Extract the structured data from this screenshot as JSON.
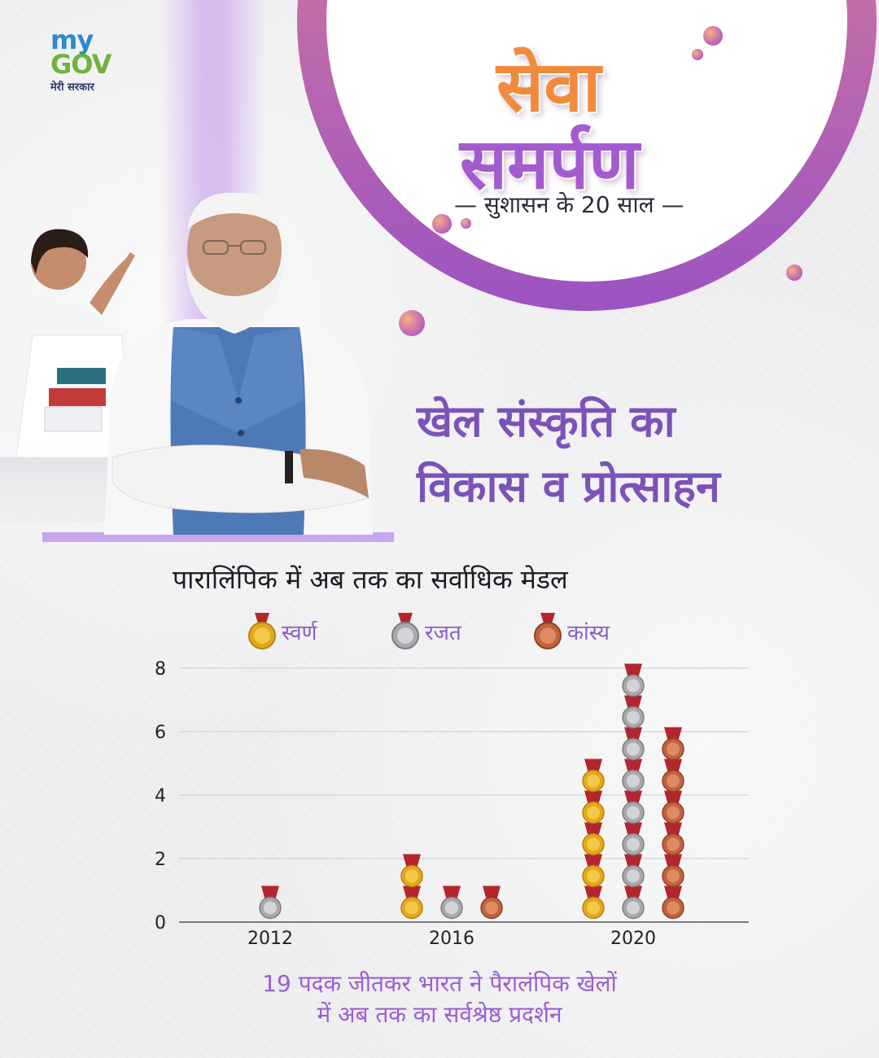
{
  "logo": {
    "my": "my",
    "gov": "GOV",
    "sub": "मेरी सरकार"
  },
  "header": {
    "title_line1": "सेवा",
    "title_line2": "समर्पण",
    "tagline": "— सुशासन के 20 साल —"
  },
  "heading": {
    "line1": "खेल संस्कृति का",
    "line2": "विकास व प्रोत्साहन"
  },
  "colors": {
    "gold": "#e3a81d",
    "silver": "#a9a9ad",
    "bronze": "#c0643f",
    "ribbon": "#b5262c",
    "accent": "#9a5fcf"
  },
  "chart_data": {
    "type": "bar",
    "title": "पारालिंपिक में अब तक का सर्वाधिक मेडल",
    "categories": [
      "2012",
      "2016",
      "2020"
    ],
    "series": [
      {
        "name": "स्वर्ण",
        "values": [
          0,
          2,
          5
        ]
      },
      {
        "name": "रजत",
        "values": [
          1,
          1,
          8
        ]
      },
      {
        "name": "कांस्य",
        "values": [
          0,
          1,
          6
        ]
      }
    ],
    "ylim": [
      0,
      8
    ],
    "yticks": [
      "0",
      "2",
      "4",
      "6",
      "8"
    ],
    "grid": true,
    "legend": "top"
  },
  "footer": {
    "line1": "19 पदक जीतकर भारत ने पैरालंपिक खेलों",
    "line2": "में अब तक का सर्वश्रेष्ठ प्रदर्शन"
  }
}
